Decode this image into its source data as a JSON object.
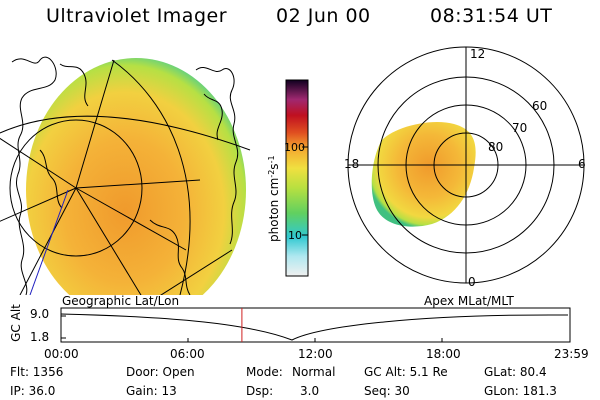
{
  "header": {
    "title": "Ultraviolet Imager",
    "date": "02 Jun 00",
    "time": "08:31:54 UT"
  },
  "colorbar": {
    "unit_text": "photon cm",
    "unit_sup1": "-2",
    "unit_mid": "s",
    "unit_sup2": "-1",
    "tick_high": "100",
    "tick_low": "10",
    "scale": "log"
  },
  "polar_plot": {
    "mlt_top": "12",
    "mlt_left": "18",
    "mlt_right": "6",
    "mlt_bottom": "0",
    "lat_60": "60",
    "lat_70": "70",
    "lat_80": "80"
  },
  "projections": {
    "left_label": "Geographic Lat/Lon",
    "right_label": "Apex MLat/MLT"
  },
  "altitude_plot": {
    "ylabel": "GC Alt",
    "y_top": "9.0",
    "y_bottom": "1.8",
    "x_ticks": [
      "00:00",
      "06:00",
      "12:00",
      "18:00",
      "23:59"
    ],
    "current_time_hours": 8.53
  },
  "info": {
    "flt": "Flt: 1356",
    "ip": "IP: 36.0",
    "door": "Door: Open",
    "gain": "Gain: 13",
    "mode_label": "Mode:",
    "mode_value": "Normal",
    "dsp_label": "Dsp:",
    "dsp_value": "3.0",
    "gcalt": "GC Alt: 5.1 Re",
    "seq": "Seq: 30",
    "glat": "GLat: 80.4",
    "glon": "GLon: 181.3"
  },
  "colors": {
    "aurora_center": "#f4a030",
    "aurora_mid": "#f6c23a",
    "aurora_edge": "#b8e040",
    "aurora_rim": "#50d080",
    "marker_line": "#d02020"
  }
}
